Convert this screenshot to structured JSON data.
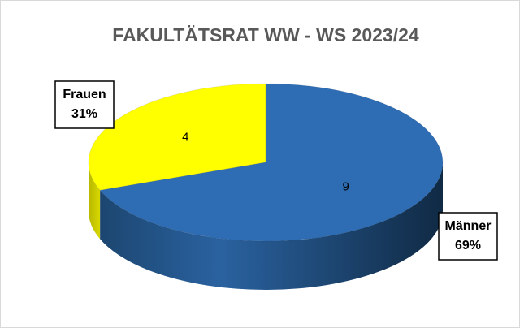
{
  "chart_data": {
    "type": "pie3d",
    "title": "FAKULTÄTSRAT WW - WS 2023/24",
    "categories": [
      "Frauen",
      "Männer"
    ],
    "values": [
      4,
      9
    ],
    "percent_labels": [
      "31%",
      "69%"
    ],
    "colors": [
      "#ffff00",
      "#2e6db4"
    ]
  }
}
